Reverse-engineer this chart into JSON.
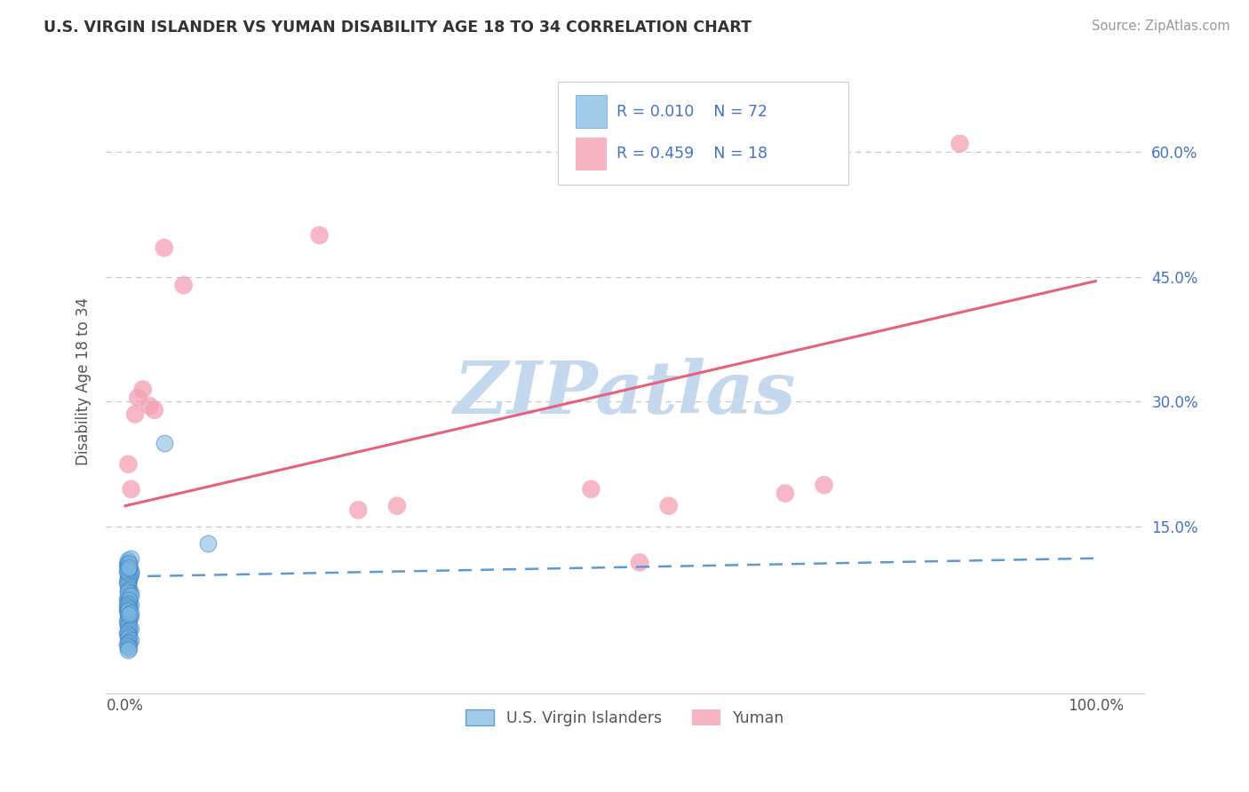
{
  "title": "U.S. VIRGIN ISLANDER VS YUMAN DISABILITY AGE 18 TO 34 CORRELATION CHART",
  "source_text": "Source: ZipAtlas.com",
  "ylabel": "Disability Age 18 to 34",
  "xlim": [
    -0.02,
    1.05
  ],
  "ylim": [
    -0.05,
    0.7
  ],
  "xtick_positions": [
    0.0,
    1.0
  ],
  "xtick_labels": [
    "0.0%",
    "100.0%"
  ],
  "ytick_positions": [
    0.0,
    0.15,
    0.3,
    0.45,
    0.6
  ],
  "ytick_labels": [
    "",
    "15.0%",
    "30.0%",
    "45.0%",
    "60.0%"
  ],
  "series1_name": "U.S. Virgin Islanders",
  "series1_R": "0.010",
  "series1_N": "72",
  "series1_color": "#7ab5e0",
  "series1_edge_color": "#3a7fc1",
  "series1_x": [
    0.003,
    0.004,
    0.005,
    0.003,
    0.004,
    0.003,
    0.005,
    0.004,
    0.003,
    0.002,
    0.003,
    0.004,
    0.003,
    0.005,
    0.004,
    0.003,
    0.002,
    0.003,
    0.004,
    0.005,
    0.004,
    0.003,
    0.002,
    0.003,
    0.004,
    0.003,
    0.005,
    0.004,
    0.003,
    0.002,
    0.003,
    0.004,
    0.003,
    0.005,
    0.004,
    0.003,
    0.002,
    0.003,
    0.004,
    0.003,
    0.005,
    0.004,
    0.003,
    0.002,
    0.003,
    0.004,
    0.003,
    0.005,
    0.004,
    0.003,
    0.002,
    0.003,
    0.004,
    0.003,
    0.005,
    0.004,
    0.003,
    0.002,
    0.003,
    0.004,
    0.003,
    0.005,
    0.004,
    0.003,
    0.002,
    0.003,
    0.004,
    0.003,
    0.005,
    0.004,
    0.04,
    0.085
  ],
  "series1_y": [
    0.085,
    0.092,
    0.095,
    0.09,
    0.087,
    0.082,
    0.093,
    0.088,
    0.086,
    0.083,
    0.08,
    0.076,
    0.073,
    0.07,
    0.068,
    0.065,
    0.063,
    0.06,
    0.058,
    0.056,
    0.054,
    0.052,
    0.05,
    0.048,
    0.046,
    0.044,
    0.042,
    0.04,
    0.038,
    0.036,
    0.034,
    0.032,
    0.03,
    0.028,
    0.026,
    0.024,
    0.022,
    0.02,
    0.018,
    0.016,
    0.014,
    0.012,
    0.01,
    0.008,
    0.006,
    0.004,
    0.002,
    0.098,
    0.1,
    0.102,
    0.104,
    0.106,
    0.108,
    0.11,
    0.112,
    0.105,
    0.095,
    0.097,
    0.099,
    0.101,
    0.071,
    0.067,
    0.062,
    0.057,
    0.055,
    0.053,
    0.051,
    0.049,
    0.047,
    0.045,
    0.25,
    0.13
  ],
  "series2_name": "Yuman",
  "series2_R": "0.459",
  "series2_N": "18",
  "series2_color": "#f4a0b5",
  "series2_x": [
    0.003,
    0.006,
    0.01,
    0.013,
    0.018,
    0.025,
    0.03,
    0.04,
    0.06,
    0.2,
    0.24,
    0.28,
    0.48,
    0.53,
    0.68,
    0.72,
    0.86,
    0.56
  ],
  "series2_y": [
    0.225,
    0.195,
    0.285,
    0.305,
    0.315,
    0.295,
    0.29,
    0.485,
    0.44,
    0.5,
    0.17,
    0.175,
    0.195,
    0.107,
    0.19,
    0.2,
    0.61,
    0.175
  ],
  "line1_color": "#5b9bd5",
  "line1_y_intercept": 0.09,
  "line1_slope": 0.022,
  "line2_color": "#e8607a",
  "line2_y_intercept": 0.175,
  "line2_slope": 0.27,
  "legend_R1": "R = 0.010",
  "legend_N1": "N = 72",
  "legend_R2": "R = 0.459",
  "legend_N2": "N = 18",
  "watermark_text": "ZIPatlas",
  "watermark_color": "#c5d9ee",
  "grid_color": "#c8c8c8",
  "background_color": "#ffffff",
  "text_blue_color": "#4472c4"
}
